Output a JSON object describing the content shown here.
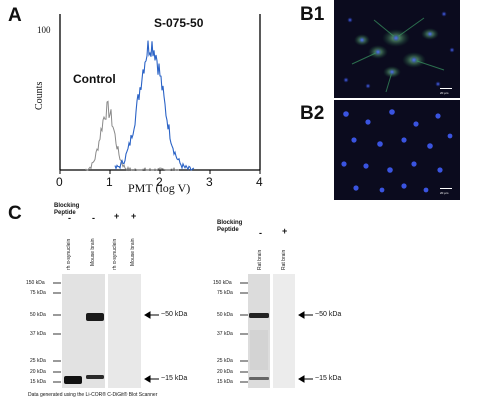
{
  "panel_a": {
    "letter": "A",
    "y_label": "Counts",
    "y_max_label": "100",
    "x_label": "PMT (log V)",
    "x_ticks": [
      "0",
      "1",
      "2",
      "3",
      "4"
    ],
    "control_label": "Control",
    "antibody_label": "S-075-50",
    "colors": {
      "control": "#8a8a8a",
      "antibody": "#2b63c6",
      "axis": "#000000"
    }
  },
  "panel_b": {
    "letter_b1": "B1",
    "letter_b2": "B2",
    "scale_text": "20 µm"
  },
  "panel_c": {
    "letter": "C",
    "blocking_label": "Blocking Peptide",
    "left_signs": [
      "-",
      "-",
      "+",
      "+"
    ],
    "left_lanes": [
      "rh α-synuclein",
      "Mouse brain",
      "rh α-synuclein",
      "Mouse brain"
    ],
    "right_signs": [
      "-",
      "+"
    ],
    "right_lanes": [
      "Rat brain",
      "Rat brain"
    ],
    "mw_left": [
      "150 kDa",
      "75 kDa",
      "50 kDa",
      "37 kDa",
      "25 kDa",
      "20 kDa",
      "15 kDa"
    ],
    "mw_right": [
      "150 kDa",
      "75 kDa",
      "50 kDa",
      "37 kDa",
      "25 kDa",
      "20 kDa",
      "15 kDa"
    ],
    "arrow_50": "~50 kDa",
    "arrow_15": "~15 kDa",
    "footnote": "Data generated using the Li-COR® C-DiGit® Blot Scanner"
  }
}
